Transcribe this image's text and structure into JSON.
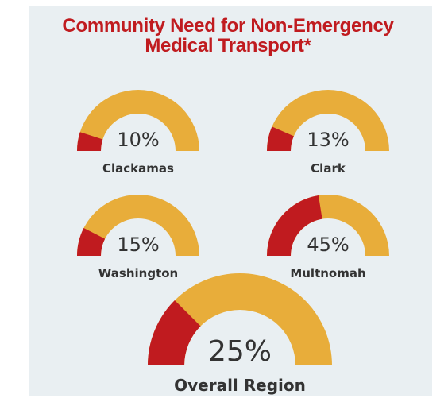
{
  "chart_data": {
    "type": "gauge",
    "title": "Community Need for Non-Emergency Medical Transport*",
    "categories": [
      "Clackamas",
      "Clark",
      "Washington",
      "Multnomah",
      "Overall Region"
    ],
    "values": [
      10,
      13,
      15,
      45,
      25
    ],
    "value_labels": [
      "10%",
      "13%",
      "15%",
      "45%",
      "25%"
    ],
    "ylim": [
      0,
      100
    ],
    "color": "#c01b1f",
    "track_color": "#e8ad3a"
  }
}
